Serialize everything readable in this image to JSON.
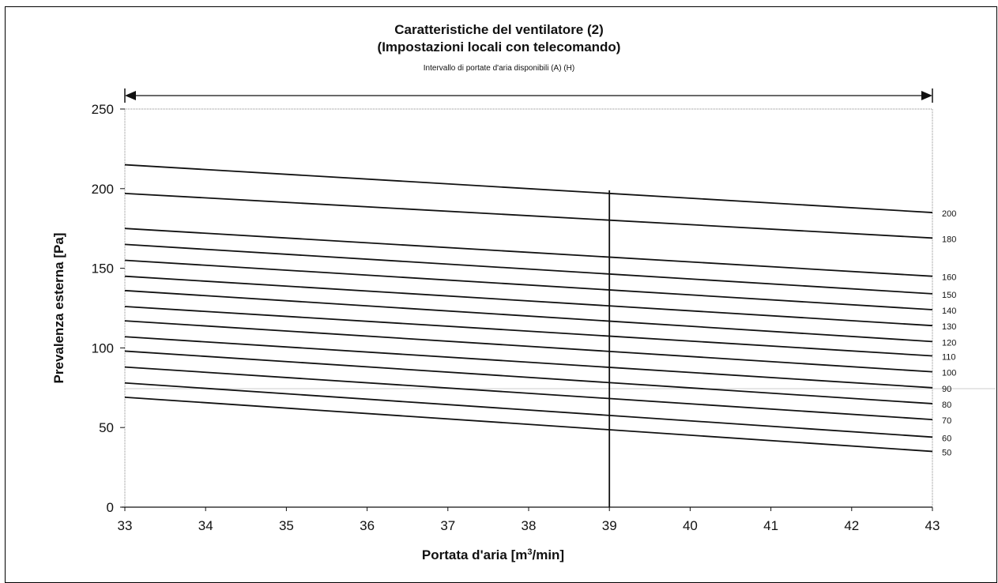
{
  "chart_data": {
    "type": "line",
    "title": "Caratteristiche del ventilatore (2)",
    "subtitle": "(Impostazioni locali con telecomando)",
    "annotation": "Intervallo di portate d'aria disponibili (A) (H)",
    "xlabel_prefix": "Portata d'aria [m",
    "xlabel_sup": "3",
    "xlabel_suffix": "/min]",
    "ylabel": "Prevalenza esterna [Pa]",
    "xlim": [
      33,
      43
    ],
    "ylim": [
      0,
      250
    ],
    "x_ticks": [
      33,
      34,
      35,
      36,
      37,
      38,
      39,
      40,
      41,
      42,
      43
    ],
    "y_ticks": [
      0,
      50,
      100,
      150,
      200,
      250
    ],
    "grid": false,
    "vertical_marker": {
      "x": 39,
      "y_top": 199
    },
    "series": [
      {
        "name": "200",
        "x": [
          33,
          43
        ],
        "values": [
          215,
          185
        ]
      },
      {
        "name": "180",
        "x": [
          33,
          43
        ],
        "values": [
          197,
          169
        ]
      },
      {
        "name": "160",
        "x": [
          33,
          43
        ],
        "values": [
          175,
          145
        ]
      },
      {
        "name": "150",
        "x": [
          33,
          43
        ],
        "values": [
          165,
          134
        ]
      },
      {
        "name": "140",
        "x": [
          33,
          43
        ],
        "values": [
          155,
          124
        ]
      },
      {
        "name": "130",
        "x": [
          33,
          43
        ],
        "values": [
          145,
          114
        ]
      },
      {
        "name": "120",
        "x": [
          33,
          43
        ],
        "values": [
          136,
          104
        ]
      },
      {
        "name": "110",
        "x": [
          33,
          43
        ],
        "values": [
          126,
          95
        ]
      },
      {
        "name": "100",
        "x": [
          33,
          43
        ],
        "values": [
          117,
          85
        ]
      },
      {
        "name": "90",
        "x": [
          33,
          43
        ],
        "values": [
          107,
          75
        ]
      },
      {
        "name": "80",
        "x": [
          33,
          43
        ],
        "values": [
          98,
          65
        ]
      },
      {
        "name": "70",
        "x": [
          33,
          43
        ],
        "values": [
          88,
          55
        ]
      },
      {
        "name": "60",
        "x": [
          33,
          43
        ],
        "values": [
          78,
          44
        ]
      },
      {
        "name": "50",
        "x": [
          33,
          43
        ],
        "values": [
          69,
          35
        ]
      }
    ],
    "colors": {
      "line": "#111111",
      "frame": "#888888",
      "faint_line": "#bbbbbb"
    }
  }
}
